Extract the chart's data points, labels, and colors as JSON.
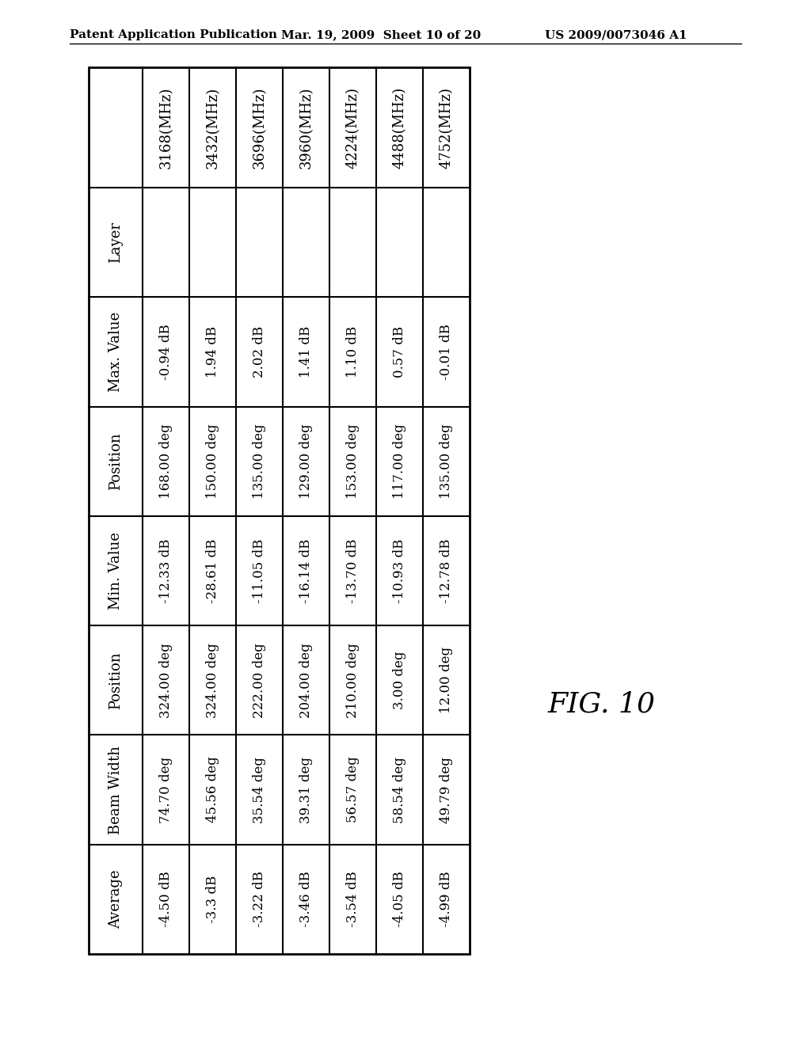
{
  "row_headers": [
    "Layer",
    "Max. Value",
    "Position",
    "Min. Value",
    "Position",
    "Beam Width",
    "Average"
  ],
  "col_headers": [
    "3168(MHz)",
    "3432(MHz)",
    "3696(MHz)",
    "3960(MHz)",
    "4224(MHz)",
    "4488(MHz)",
    "4752(MHz)"
  ],
  "data": [
    [
      "-0.94 dB",
      "1.94 dB",
      "2.02 dB",
      "1.41 dB",
      "1.10 dB",
      "0.57 dB",
      "-0.01 dB"
    ],
    [
      "168.00 deg",
      "150.00 deg",
      "135.00 deg",
      "129.00 deg",
      "153.00 deg",
      "117.00 deg",
      "135.00 deg"
    ],
    [
      "-12.33 dB",
      "-28.61 dB",
      "-11.05 dB",
      "-16.14 dB",
      "-13.70 dB",
      "-10.93 dB",
      "-12.78 dB"
    ],
    [
      "324.00 deg",
      "324.00 deg",
      "222.00 deg",
      "204.00 deg",
      "210.00 deg",
      "3.00 deg",
      "12.00 deg"
    ],
    [
      "74.70 deg",
      "45.56 deg",
      "35.54 deg",
      "39.31 deg",
      "56.57 deg",
      "58.54 deg",
      "49.79 deg"
    ],
    [
      "-4.50 dB",
      "-3.3 dB",
      "-3.22 dB",
      "-3.46 dB",
      "-3.54 dB",
      "-4.05 dB",
      "-4.99 dB"
    ]
  ],
  "background_color": "#ffffff",
  "border_color": "#000000",
  "text_color": "#000000",
  "header_left_text": "Patent Application Publication",
  "header_mid_text": "Mar. 19, 2009  Sheet 10 of 20",
  "header_right_text": "US 2009/0073046 A1",
  "fig_label": "FIG. 10",
  "font_family": "DejaVu Serif"
}
